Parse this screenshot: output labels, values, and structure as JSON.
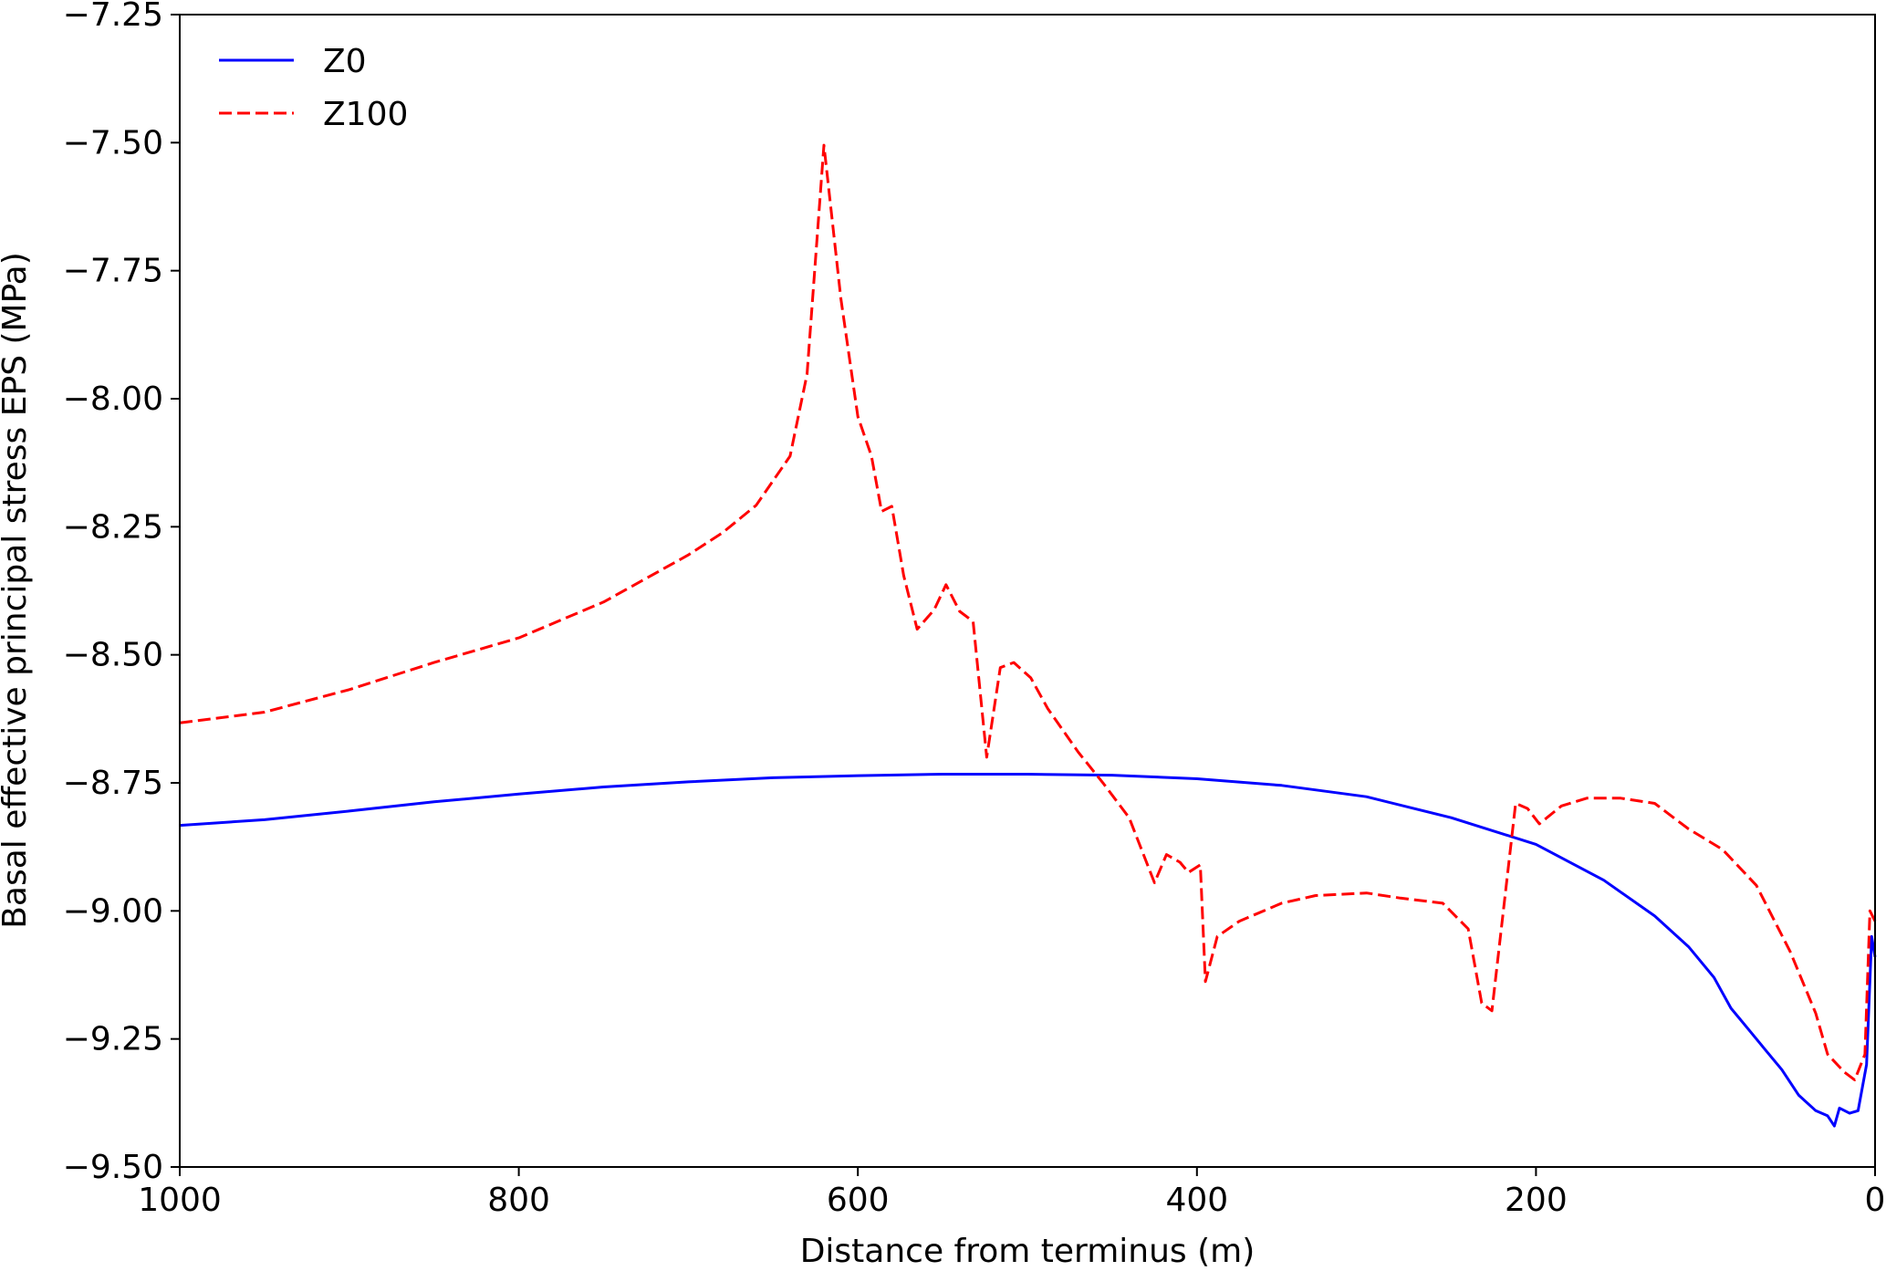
{
  "chart_data": {
    "type": "line",
    "xlabel": "Distance from terminus (m)",
    "ylabel": "Basal effective principal stress EPS (MPa)",
    "xlim": [
      1000,
      0
    ],
    "ylim": [
      -9.5,
      -7.25
    ],
    "x_ticks": [
      1000,
      800,
      600,
      400,
      200,
      0
    ],
    "x_tick_labels": [
      "1000",
      "800",
      "600",
      "400",
      "200",
      "0"
    ],
    "y_ticks": [
      -7.25,
      -7.5,
      -7.75,
      -8.0,
      -8.25,
      -8.5,
      -8.75,
      -9.0,
      -9.25,
      -9.5
    ],
    "y_tick_labels": [
      "−7.25",
      "−7.50",
      "−7.75",
      "−8.00",
      "−8.25",
      "−8.50",
      "−8.75",
      "−9.00",
      "−9.25",
      "−9.50"
    ],
    "grid": false,
    "legend_position": "top-left",
    "series": [
      {
        "name": "Z0",
        "color": "#0000ff",
        "style": "solid",
        "points": [
          [
            1000,
            -8.833
          ],
          [
            950,
            -8.822
          ],
          [
            900,
            -8.805
          ],
          [
            850,
            -8.787
          ],
          [
            800,
            -8.772
          ],
          [
            750,
            -8.758
          ],
          [
            700,
            -8.748
          ],
          [
            650,
            -8.74
          ],
          [
            600,
            -8.736
          ],
          [
            550,
            -8.733
          ],
          [
            500,
            -8.733
          ],
          [
            450,
            -8.735
          ],
          [
            400,
            -8.742
          ],
          [
            350,
            -8.755
          ],
          [
            300,
            -8.777
          ],
          [
            250,
            -8.818
          ],
          [
            200,
            -8.87
          ],
          [
            160,
            -8.94
          ],
          [
            130,
            -9.01
          ],
          [
            110,
            -9.07
          ],
          [
            95,
            -9.13
          ],
          [
            85,
            -9.19
          ],
          [
            75,
            -9.23
          ],
          [
            65,
            -9.27
          ],
          [
            55,
            -9.31
          ],
          [
            45,
            -9.36
          ],
          [
            35,
            -9.39
          ],
          [
            28,
            -9.4
          ],
          [
            24,
            -9.42
          ],
          [
            21,
            -9.385
          ],
          [
            15,
            -9.395
          ],
          [
            10,
            -9.39
          ],
          [
            5,
            -9.3
          ],
          [
            2,
            -9.05
          ],
          [
            0,
            -9.09
          ]
        ]
      },
      {
        "name": "Z100",
        "color": "#ff0000",
        "style": "dashed",
        "points": [
          [
            1000,
            -8.633
          ],
          [
            950,
            -8.612
          ],
          [
            900,
            -8.568
          ],
          [
            850,
            -8.515
          ],
          [
            800,
            -8.467
          ],
          [
            750,
            -8.397
          ],
          [
            700,
            -8.305
          ],
          [
            680,
            -8.262
          ],
          [
            660,
            -8.208
          ],
          [
            640,
            -8.112
          ],
          [
            630,
            -7.952
          ],
          [
            620,
            -7.505
          ],
          [
            610,
            -7.805
          ],
          [
            600,
            -8.035
          ],
          [
            592,
            -8.112
          ],
          [
            586,
            -8.22
          ],
          [
            580,
            -8.21
          ],
          [
            573,
            -8.345
          ],
          [
            565,
            -8.45
          ],
          [
            555,
            -8.412
          ],
          [
            548,
            -8.363
          ],
          [
            540,
            -8.415
          ],
          [
            532,
            -8.435
          ],
          [
            524,
            -8.7
          ],
          [
            516,
            -8.525
          ],
          [
            508,
            -8.515
          ],
          [
            498,
            -8.545
          ],
          [
            488,
            -8.605
          ],
          [
            470,
            -8.69
          ],
          [
            455,
            -8.752
          ],
          [
            440,
            -8.818
          ],
          [
            425,
            -8.945
          ],
          [
            418,
            -8.89
          ],
          [
            410,
            -8.905
          ],
          [
            405,
            -8.925
          ],
          [
            398,
            -8.91
          ],
          [
            395,
            -9.138
          ],
          [
            388,
            -9.05
          ],
          [
            375,
            -9.02
          ],
          [
            350,
            -8.985
          ],
          [
            330,
            -8.97
          ],
          [
            300,
            -8.965
          ],
          [
            280,
            -8.975
          ],
          [
            255,
            -8.985
          ],
          [
            240,
            -9.035
          ],
          [
            232,
            -9.18
          ],
          [
            226,
            -9.195
          ],
          [
            212,
            -8.79
          ],
          [
            205,
            -8.8
          ],
          [
            198,
            -8.83
          ],
          [
            185,
            -8.795
          ],
          [
            170,
            -8.78
          ],
          [
            150,
            -8.78
          ],
          [
            130,
            -8.79
          ],
          [
            110,
            -8.84
          ],
          [
            90,
            -8.88
          ],
          [
            70,
            -8.95
          ],
          [
            50,
            -9.08
          ],
          [
            35,
            -9.2
          ],
          [
            28,
            -9.28
          ],
          [
            18,
            -9.315
          ],
          [
            12,
            -9.33
          ],
          [
            6,
            -9.28
          ],
          [
            3,
            -9.0
          ],
          [
            0,
            -9.02
          ]
        ]
      }
    ]
  }
}
